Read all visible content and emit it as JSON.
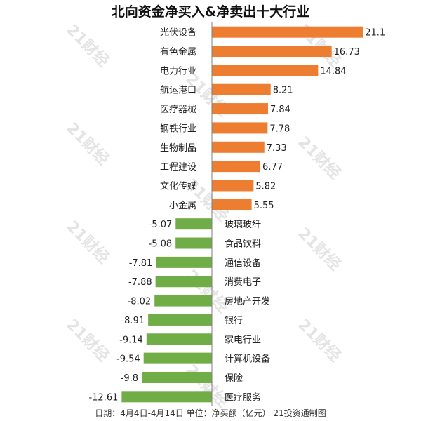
{
  "title": "北向资金净买入&净卖出十大行业",
  "footer": "日期：4月4日-4月14日 单位：净买额（亿元） 21投资通制图",
  "watermark": "21财经",
  "colors": {
    "positive": "#ED7D31",
    "negative": "#70AD47",
    "axis": "#7f7f7f"
  },
  "chart_data": {
    "type": "bar",
    "orientation": "horizontal",
    "title": "北向资金净买入&净卖出十大行业",
    "xlabel": "",
    "ylabel": "",
    "xlim": [
      -13,
      22
    ],
    "grid": false,
    "categories": [
      "光伏设备",
      "有色金属",
      "电力行业",
      "航运港口",
      "医疗器械",
      "钢铁行业",
      "生物制品",
      "工程建设",
      "文化传媒",
      "小金属",
      "玻璃玻纤",
      "食品饮料",
      "通信设备",
      "消费电子",
      "房地产开发",
      "银行",
      "家电行业",
      "计算机设备",
      "保险",
      "医疗服务"
    ],
    "values": [
      21.1,
      16.73,
      14.84,
      8.21,
      7.84,
      7.78,
      7.33,
      6.77,
      5.82,
      5.55,
      -5.07,
      -5.08,
      -7.81,
      -7.88,
      -8.02,
      -8.91,
      -9.14,
      -9.54,
      -9.8,
      -12.61
    ]
  }
}
